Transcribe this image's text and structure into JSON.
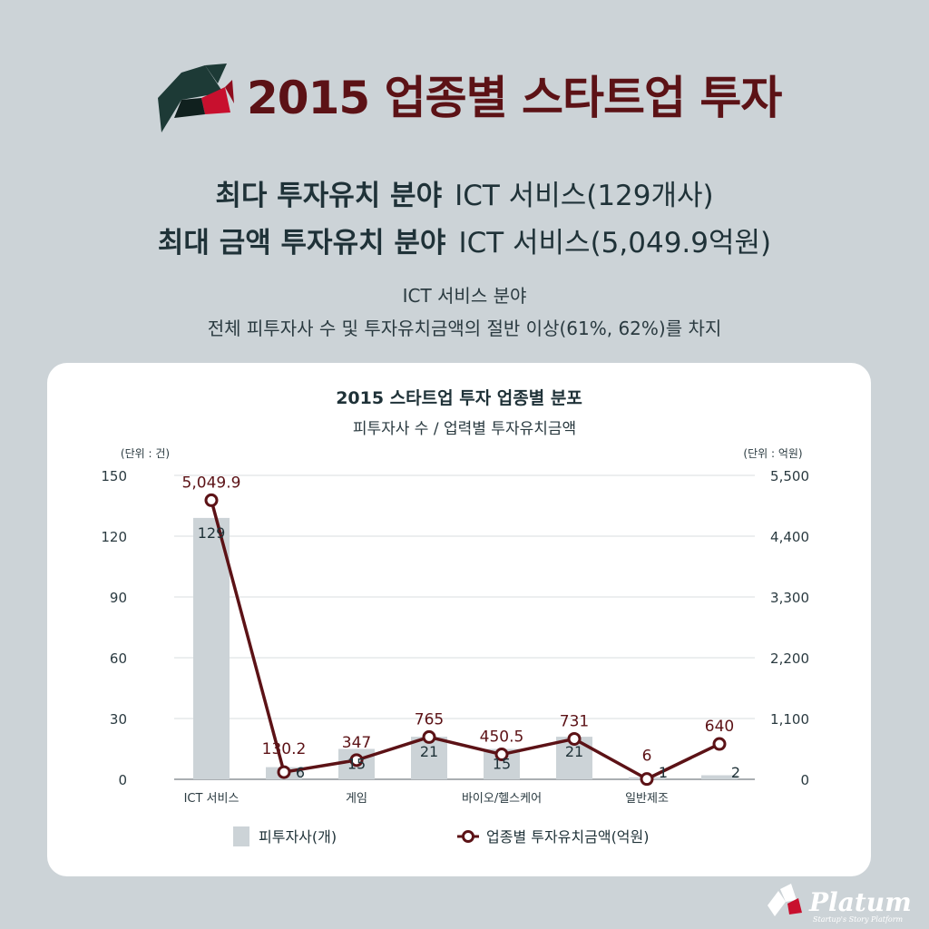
{
  "header": {
    "title": "2015 업종별 스타트업 투자"
  },
  "highlights": [
    {
      "label": "최다 투자유치 분야",
      "value": "ICT 서비스(129개사)"
    },
    {
      "label": "최대 금액 투자유치 분야",
      "value": "ICT 서비스(5,049.9억원)"
    }
  ],
  "summary": {
    "line1": "ICT 서비스 분야",
    "line2": "전체 피투자사 수 및 투자유치금액의 절반 이상(61%, 62%)를 차지"
  },
  "colors": {
    "background": "#ccd3d7",
    "title": "#5c1216",
    "bar": "#ccd3d7",
    "line": "#5c1216",
    "grid": "#d9dcdf"
  },
  "watermark": {
    "brand": "Platum",
    "tagline": "Startup's Story Platform"
  },
  "chart_data": {
    "type": "bar",
    "title": "2015 스타트업 투자 업종별 분포",
    "subtitle": "피투자사 수 / 업력별 투자유치금액",
    "y_left_unit": "(단위 : 건)",
    "y_right_unit": "(단위 : 억원)",
    "y_left_ticks": [
      "0",
      "30",
      "60",
      "90",
      "120",
      "150"
    ],
    "y_right_ticks": [
      "0",
      "1,100",
      "2,200",
      "3,300",
      "4,400",
      "5,500"
    ],
    "ylim_left": [
      0,
      150
    ],
    "ylim_right": [
      0,
      5500
    ],
    "categories": [
      "ICT 서비스",
      "",
      "게임",
      "",
      "바이오/헬스케어",
      "",
      "일반제조",
      ""
    ],
    "series": [
      {
        "name": "피투자사(개)",
        "type": "bar",
        "axis": "left",
        "values": [
          129,
          6,
          15,
          21,
          15,
          21,
          1,
          2
        ],
        "labels": [
          "129",
          "6",
          "15",
          "21",
          "15",
          "21",
          "1",
          "2"
        ]
      },
      {
        "name": "업종별 투자유치금액(억원)",
        "type": "line",
        "axis": "right",
        "values": [
          5049.9,
          130.2,
          347,
          765,
          450.5,
          731,
          6,
          640
        ],
        "labels": [
          "5,049.9",
          "130.2",
          "347",
          "765",
          "450.5",
          "731",
          "6",
          "640"
        ]
      }
    ],
    "legend": [
      "피투자사(개)",
      "업종별 투자유치금액(억원)"
    ],
    "legend_position": "bottom",
    "grid": true
  }
}
